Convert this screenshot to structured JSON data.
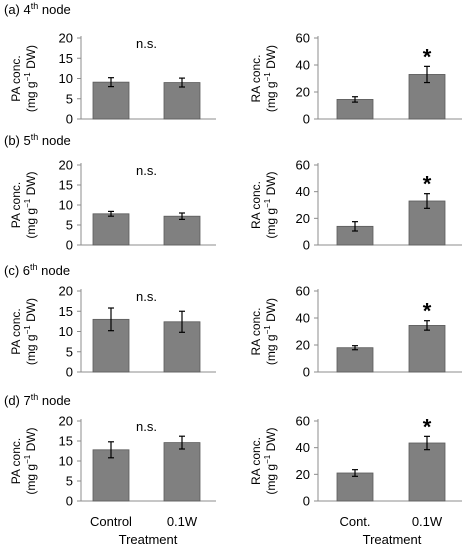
{
  "figure": {
    "panel_labels": [
      "(a) 4",
      "(b) 5",
      "(c) 6",
      "(d) 7"
    ],
    "panel_label_sup": "th",
    "panel_label_suffix": " node",
    "x_title": "Treatment",
    "left_ylabel": {
      "line1": "PA conc.",
      "line2_pre": "(mg g",
      "line2_sup": "−1",
      "line2_post": " DW)"
    },
    "right_ylabel": {
      "line1": "RA conc.",
      "line2_pre": "(mg g",
      "line2_sup": "−1",
      "line2_post": " DW)"
    },
    "left_categories": [
      "Control",
      "0.1W"
    ],
    "right_categories": [
      "Cont.",
      "0.1W"
    ],
    "colors": {
      "bar": "#808080",
      "bar_edge": "#5a5a5a",
      "axis": "#8c8c8c"
    }
  },
  "chart_data": [
    {
      "type": "bar",
      "panel": "(a) 4th node",
      "ylabel": "PA conc. (mg g−1 DW)",
      "categories": [
        "Control",
        "0.1W"
      ],
      "values": [
        9.1,
        9.0
      ],
      "errors": [
        1.1,
        1.1
      ],
      "ylim": [
        0,
        20
      ],
      "yticks": [
        0,
        5,
        10,
        15,
        20
      ],
      "annotation": "n.s.",
      "annotation_x": 0.5
    },
    {
      "type": "bar",
      "panel": "(a) 4th node",
      "ylabel": "RA conc. (mg g−1 DW)",
      "categories": [
        "Cont.",
        "0.1W"
      ],
      "values": [
        14.5,
        33.0
      ],
      "errors": [
        2.0,
        6.0
      ],
      "ylim": [
        0,
        60
      ],
      "yticks": [
        0,
        20,
        40,
        60
      ],
      "annotation": "*",
      "annotation_x": 1
    },
    {
      "type": "bar",
      "panel": "(b) 5th node",
      "ylabel": "PA conc. (mg g−1 DW)",
      "categories": [
        "Control",
        "0.1W"
      ],
      "values": [
        7.8,
        7.2
      ],
      "errors": [
        0.6,
        0.8
      ],
      "ylim": [
        0,
        20
      ],
      "yticks": [
        0,
        5,
        10,
        15,
        20
      ],
      "annotation": "n.s.",
      "annotation_x": 0.5
    },
    {
      "type": "bar",
      "panel": "(b) 5th node",
      "ylabel": "RA conc. (mg g−1 DW)",
      "categories": [
        "Cont.",
        "0.1W"
      ],
      "values": [
        14.0,
        33.0
      ],
      "errors": [
        3.5,
        5.5
      ],
      "ylim": [
        0,
        60
      ],
      "yticks": [
        0,
        20,
        40,
        60
      ],
      "annotation": "*",
      "annotation_x": 1
    },
    {
      "type": "bar",
      "panel": "(c) 6th node",
      "ylabel": "PA conc. (mg g−1 DW)",
      "categories": [
        "Control",
        "0.1W"
      ],
      "values": [
        13.0,
        12.4
      ],
      "errors": [
        2.8,
        2.6
      ],
      "ylim": [
        0,
        20
      ],
      "yticks": [
        0,
        5,
        10,
        15,
        20
      ],
      "annotation": "n.s.",
      "annotation_x": 0.5
    },
    {
      "type": "bar",
      "panel": "(c) 6th node",
      "ylabel": "RA conc. (mg g−1 DW)",
      "categories": [
        "Cont.",
        "0.1W"
      ],
      "values": [
        18.0,
        34.5
      ],
      "errors": [
        1.5,
        3.5
      ],
      "ylim": [
        0,
        60
      ],
      "yticks": [
        0,
        20,
        40,
        60
      ],
      "annotation": "*",
      "annotation_x": 1
    },
    {
      "type": "bar",
      "panel": "(d) 7th node",
      "ylabel": "PA conc. (mg g−1 DW)",
      "categories": [
        "Control",
        "0.1W"
      ],
      "values": [
        12.8,
        14.6
      ],
      "errors": [
        2.0,
        1.6
      ],
      "ylim": [
        0,
        20
      ],
      "yticks": [
        0,
        5,
        10,
        15,
        20
      ],
      "annotation": "n.s.",
      "annotation_x": 0.5
    },
    {
      "type": "bar",
      "panel": "(d) 7th node",
      "ylabel": "RA conc. (mg g−1 DW)",
      "categories": [
        "Cont.",
        "0.1W"
      ],
      "values": [
        21.0,
        43.5
      ],
      "errors": [
        2.5,
        5.0
      ],
      "ylim": [
        0,
        60
      ],
      "yticks": [
        0,
        20,
        40,
        60
      ],
      "annotation": "*",
      "annotation_x": 1
    }
  ]
}
